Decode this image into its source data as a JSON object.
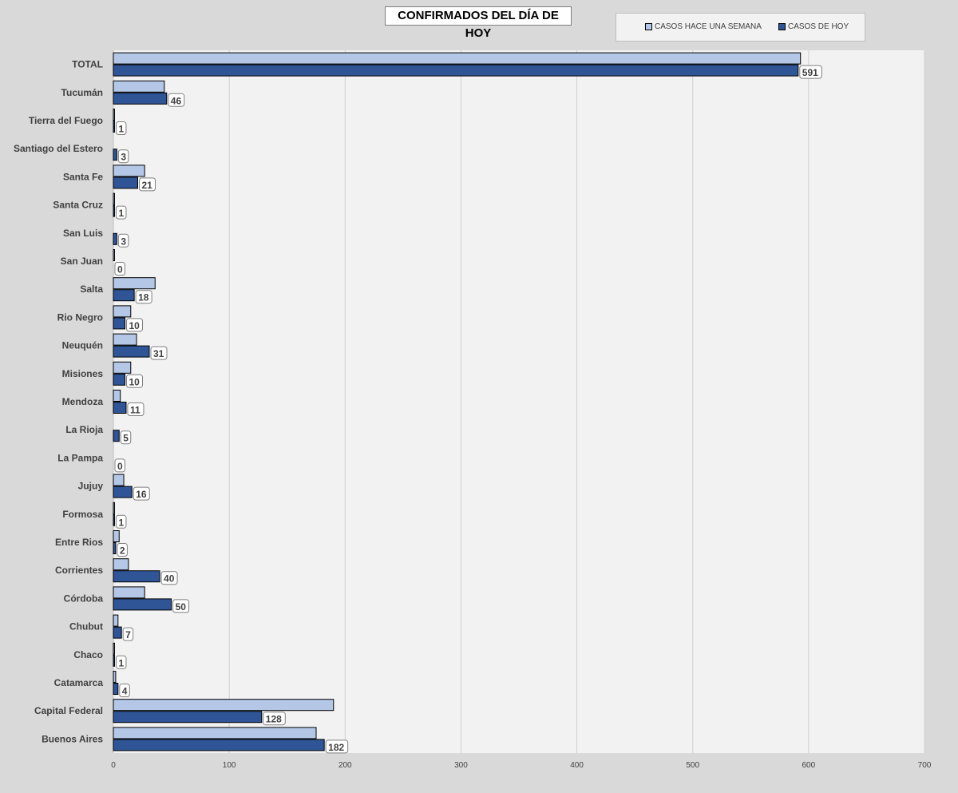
{
  "chart_data": {
    "type": "bar",
    "orientation": "horizontal",
    "title": "CONFIRMADOS DEL DÍA DE HOY",
    "xlim": [
      0,
      700
    ],
    "xticks": [
      0,
      100,
      200,
      300,
      400,
      500,
      600,
      700
    ],
    "grid": true,
    "legend_position": "top-right",
    "categories": [
      "TOTAL",
      "Tucumán",
      "Tierra del Fuego",
      "Santiago del Estero",
      "Santa Fe",
      "Santa Cruz",
      "San Luis",
      "San Juan",
      "Salta",
      "Rio Negro",
      "Neuquén",
      "Misiones",
      "Mendoza",
      "La Rioja",
      "La Pampa",
      "Jujuy",
      "Formosa",
      "Entre Rios",
      "Corrientes",
      "Córdoba",
      "Chubut",
      "Chaco",
      "Catamarca",
      "Capital Federal",
      "Buenos Aires"
    ],
    "series": [
      {
        "name": "CASOS HACE UNA SEMANA",
        "color": "#b4c7e7",
        "values": [
          593,
          44,
          1,
          0,
          27,
          1,
          0,
          1,
          36,
          15,
          20,
          15,
          6,
          0,
          0,
          9,
          1,
          5,
          13,
          27,
          4,
          1,
          2,
          190,
          175
        ]
      },
      {
        "name": "CASOS DE HOY",
        "color": "#2f5597",
        "values": [
          591,
          46,
          1,
          3,
          21,
          1,
          3,
          0,
          18,
          10,
          31,
          10,
          11,
          5,
          0,
          16,
          1,
          2,
          40,
          50,
          7,
          1,
          4,
          128,
          182
        ]
      }
    ]
  }
}
